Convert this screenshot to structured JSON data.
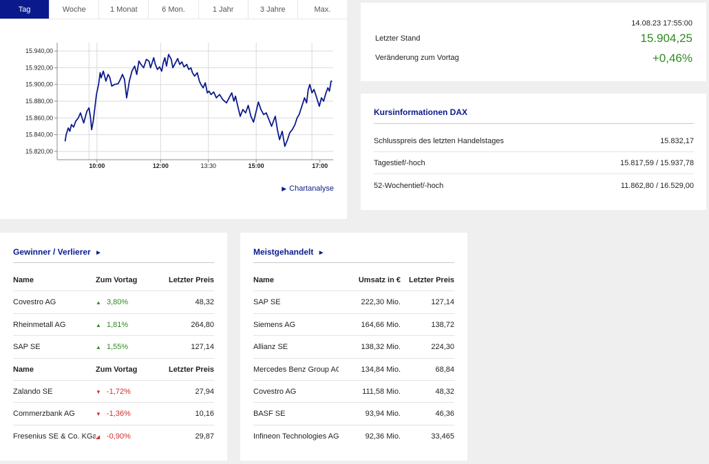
{
  "tabs": [
    {
      "label": "Tag",
      "active": true
    },
    {
      "label": "Woche",
      "active": false
    },
    {
      "label": "1 Monat",
      "active": false
    },
    {
      "label": "6 Mon.",
      "active": false
    },
    {
      "label": "1 Jahr",
      "active": false
    },
    {
      "label": "3 Jahre",
      "active": false
    },
    {
      "label": "Max.",
      "active": false
    }
  ],
  "chart_link": "Chartanalyse",
  "chart_data": {
    "type": "line",
    "color": "#0a1a8c",
    "ylim": [
      15810,
      15950
    ],
    "xlim_min": [
      525,
      1045
    ],
    "y_ticks": [
      "15.820,00",
      "15.840,00",
      "15.860,00",
      "15.880,00",
      "15.900,00",
      "15.920,00",
      "15.940,00"
    ],
    "y_tick_values": [
      15820,
      15840,
      15860,
      15880,
      15900,
      15920,
      15940
    ],
    "x_ticks": [
      "10:00",
      "12:00",
      "13:30",
      "15:00",
      "17:00"
    ],
    "x_tick_values": [
      600,
      720,
      810,
      900,
      1020
    ],
    "x_tick_bold": [
      true,
      true,
      false,
      true,
      true
    ],
    "x_grid_values": [
      585,
      600,
      720,
      810,
      900,
      1005
    ],
    "series": [
      {
        "x": [
          540,
          542,
          546,
          549,
          552,
          556,
          560,
          565,
          569,
          575,
          581,
          585,
          588,
          590,
          593,
          596,
          599,
          603,
          606,
          608,
          612,
          617,
          621,
          624,
          628,
          633,
          640,
          644,
          648,
          652,
          656,
          661,
          666,
          671,
          675,
          679,
          683,
          688,
          693,
          698,
          701,
          704,
          707,
          710,
          714,
          718,
          722,
          725,
          728,
          731,
          735,
          740,
          743,
          748,
          752,
          756,
          760,
          764,
          769,
          773,
          777,
          780,
          784,
          789,
          793,
          796,
          800,
          804,
          808,
          811,
          815,
          820,
          825,
          831,
          837,
          844,
          849,
          854,
          858,
          861,
          866,
          870,
          875,
          880,
          885,
          890,
          895,
          900,
          904,
          909,
          914,
          919,
          924,
          929,
          936,
          940,
          944,
          949,
          954,
          959,
          963,
          968,
          973,
          977,
          981,
          986,
          991,
          995,
          998,
          1001,
          1005,
          1009,
          1012,
          1016,
          1019,
          1023,
          1027,
          1031,
          1035,
          1038,
          1041,
          1043
        ],
        "y": [
          15832,
          15840,
          15848,
          15844,
          15852,
          15849,
          15856,
          15860,
          15866,
          15854,
          15868,
          15872,
          15860,
          15846,
          15856,
          15872,
          15888,
          15900,
          15914,
          15908,
          15916,
          15904,
          15912,
          15909,
          15898,
          15900,
          15901,
          15906,
          15912,
          15906,
          15884,
          15904,
          15916,
          15922,
          15912,
          15928,
          15924,
          15920,
          15930,
          15928,
          15920,
          15926,
          15932,
          15924,
          15918,
          15921,
          15916,
          15926,
          15932,
          15922,
          15936,
          15930,
          15920,
          15926,
          15931,
          15924,
          15927,
          15921,
          15924,
          15918,
          15920,
          15914,
          15910,
          15914,
          15904,
          15900,
          15896,
          15902,
          15890,
          15892,
          15888,
          15891,
          15884,
          15888,
          15882,
          15878,
          15884,
          15890,
          15880,
          15886,
          15872,
          15862,
          15870,
          15866,
          15875,
          15862,
          15855,
          15868,
          15879,
          15870,
          15864,
          15866,
          15858,
          15850,
          15862,
          15846,
          15834,
          15844,
          15826,
          15834,
          15842,
          15846,
          15852,
          15860,
          15864,
          15874,
          15884,
          15878,
          15894,
          15900,
          15890,
          15894,
          15888,
          15880,
          15874,
          15884,
          15880,
          15889,
          15896,
          15892,
          15904,
          15904
        ]
      }
    ]
  },
  "price": {
    "timestamp": "14.08.23 17:55:00",
    "last_label": "Letzter Stand",
    "last_value": "15.904,25",
    "change_label": "Veränderung zum Vortag",
    "change_value": "+0,46%",
    "value_color": "#2e8b1f"
  },
  "info": {
    "title": "Kursinformationen DAX",
    "rows": [
      {
        "label": "Schlusspreis des letzten Handelstages",
        "value": "15.832,17"
      },
      {
        "label": "Tagestief/-hoch",
        "value": "15.817,59 / 15.937,78"
      },
      {
        "label": "52-Wochentief/-hoch",
        "value": "11.862,80 / 16.529,00"
      }
    ]
  },
  "gewinner": {
    "title": "Gewinner / Verlierer",
    "title_arrow": "►",
    "header": {
      "name": "Name",
      "change": "Zum Vortag",
      "price": "Letzter Preis"
    },
    "gainers": [
      {
        "name": "Covestro AG",
        "change": "3,80%",
        "price": "48,32",
        "icon": "▲"
      },
      {
        "name": "Rheinmetall AG",
        "change": "1,81%",
        "price": "264,80",
        "icon": "▲"
      },
      {
        "name": "SAP SE",
        "change": "1,55%",
        "price": "127,14",
        "icon": "▲"
      }
    ],
    "losers": [
      {
        "name": "Zalando SE",
        "change": "-1,72%",
        "price": "27,94",
        "icon": "▼"
      },
      {
        "name": "Commerzbank AG",
        "change": "-1,36%",
        "price": "10,16",
        "icon": "▼"
      },
      {
        "name": "Fresenius SE & Co. KGaA",
        "change": "-0,90%",
        "price": "29,87",
        "icon": "◢"
      }
    ],
    "up_color": "#2e8b1f",
    "down_color": "#d12d2d"
  },
  "meist": {
    "title": "Meistgehandelt",
    "title_arrow": "►",
    "header": {
      "name": "Name",
      "volume": "Umsatz in €",
      "price": "Letzter Preis"
    },
    "rows": [
      {
        "name": "SAP SE",
        "volume": "222,30 Mio.",
        "price": "127,14"
      },
      {
        "name": "Siemens AG",
        "volume": "164,66 Mio.",
        "price": "138,72"
      },
      {
        "name": "Allianz SE",
        "volume": "138,32 Mio.",
        "price": "224,30"
      },
      {
        "name": "Mercedes Benz Group AG ...",
        "volume": "134,84 Mio.",
        "price": "68,84"
      },
      {
        "name": "Covestro AG",
        "volume": "111,58 Mio.",
        "price": "48,32"
      },
      {
        "name": "BASF SE",
        "volume": "93,94 Mio.",
        "price": "46,36"
      },
      {
        "name": "Infineon Technologies AG",
        "volume": "92,36 Mio.",
        "price": "33,465"
      }
    ]
  }
}
